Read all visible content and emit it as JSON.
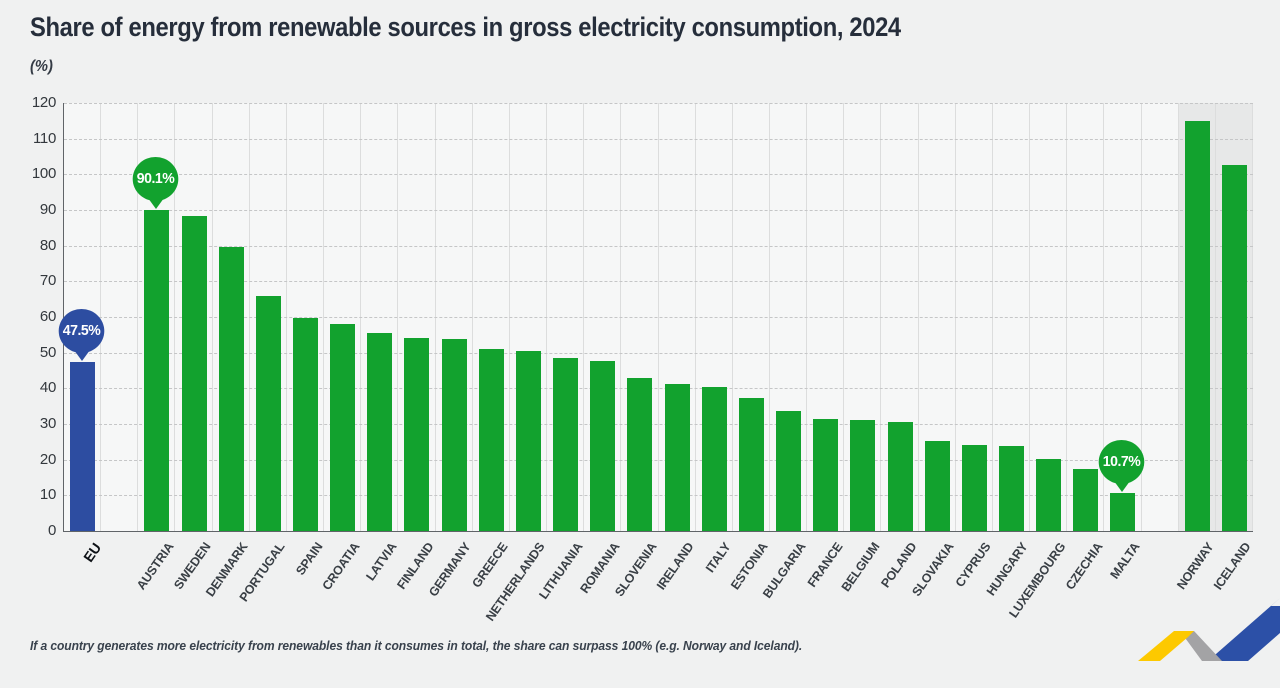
{
  "header": {
    "title": "Share of energy from renewable sources in gross electricity consumption, 2024",
    "unit_label": "(%)"
  },
  "footnote": "If a country generates more electricity from renewables than it consumes in total, the share can surpass 100% (e.g. Norway and Iceland).",
  "colors": {
    "page_bg": "#f0f1f1",
    "plot_bg": "#f6f7f7",
    "shaded_band_bg": "#e7e8e8",
    "bar_green": "#12a22e",
    "bar_blue": "#2d4da1",
    "gridline": "#c5c6c7",
    "axis": "#606468",
    "title_text": "#262e3b",
    "brand_yellow": "#fdc900",
    "brand_grey": "#a3a3a5",
    "brand_blue": "#2c50a7"
  },
  "chart_data": {
    "type": "bar",
    "title": "Share of energy from renewable sources in gross electricity consumption, 2024",
    "xlabel": "",
    "ylabel": "(%)",
    "ylim": [
      0,
      120
    ],
    "ytick_step": 10,
    "grid": "horizontal-dashed",
    "legend_position": "none",
    "bars": [
      {
        "label": "EU",
        "value": 47.5,
        "color": "#2d4da1",
        "callout": "47.5%",
        "emphasis": true,
        "spacer_after": true
      },
      {
        "label": "AUSTRIA",
        "value": 90.1,
        "callout": "90.1%"
      },
      {
        "label": "SWEDEN",
        "value": 88.3
      },
      {
        "label": "DENMARK",
        "value": 79.6
      },
      {
        "label": "PORTUGAL",
        "value": 65.8
      },
      {
        "label": "SPAIN",
        "value": 59.6
      },
      {
        "label": "CROATIA",
        "value": 58.0
      },
      {
        "label": "LATVIA",
        "value": 55.6
      },
      {
        "label": "FINLAND",
        "value": 54.2
      },
      {
        "label": "GERMANY",
        "value": 53.8
      },
      {
        "label": "GREECE",
        "value": 51.0
      },
      {
        "label": "NETHERLANDS",
        "value": 50.4
      },
      {
        "label": "LITHUANIA",
        "value": 48.6
      },
      {
        "label": "ROMANIA",
        "value": 47.6
      },
      {
        "label": "SLOVENIA",
        "value": 42.8
      },
      {
        "label": "IRELAND",
        "value": 41.3
      },
      {
        "label": "ITALY",
        "value": 40.5
      },
      {
        "label": "ESTONIA",
        "value": 37.4
      },
      {
        "label": "BULGARIA",
        "value": 33.6
      },
      {
        "label": "FRANCE",
        "value": 31.3
      },
      {
        "label": "BELGIUM",
        "value": 31.2
      },
      {
        "label": "POLAND",
        "value": 30.5
      },
      {
        "label": "SLOVAKIA",
        "value": 25.1
      },
      {
        "label": "CYPRUS",
        "value": 24.0
      },
      {
        "label": "HUNGARY",
        "value": 23.9
      },
      {
        "label": "LUXEMBOURG",
        "value": 20.3
      },
      {
        "label": "CZECHIA",
        "value": 17.5
      },
      {
        "label": "MALTA",
        "value": 10.7,
        "callout": "10.7%",
        "spacer_after": true
      },
      {
        "label": "NORWAY",
        "value": 115.0,
        "shaded_bg": true
      },
      {
        "label": "ICELAND",
        "value": 102.5,
        "shaded_bg": true
      }
    ]
  }
}
